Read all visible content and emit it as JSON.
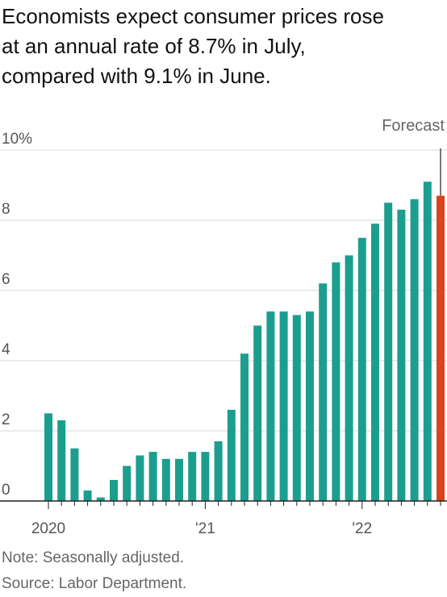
{
  "title_lines": [
    "Economists expect consumer prices rose",
    "at an annual rate of 8.7% in July,",
    "compared with 9.1% in June."
  ],
  "notes": {
    "note": "Note: Seasonally adjusted.",
    "source": "Source: Labor Department."
  },
  "chart_data": {
    "type": "bar",
    "title": "Economists expect consumer prices rose at an annual rate of 8.7% in July, compared with 9.1% in June.",
    "categories": [
      "2020-01",
      "2020-02",
      "2020-03",
      "2020-04",
      "2020-05",
      "2020-06",
      "2020-07",
      "2020-08",
      "2020-09",
      "2020-10",
      "2020-11",
      "2020-12",
      "2021-01",
      "2021-02",
      "2021-03",
      "2021-04",
      "2021-05",
      "2021-06",
      "2021-07",
      "2021-08",
      "2021-09",
      "2021-10",
      "2021-11",
      "2021-12",
      "2022-01",
      "2022-02",
      "2022-03",
      "2022-04",
      "2022-05",
      "2022-06",
      "2022-07"
    ],
    "values": [
      2.5,
      2.3,
      1.5,
      0.3,
      0.1,
      0.6,
      1.0,
      1.3,
      1.4,
      1.2,
      1.2,
      1.4,
      1.4,
      1.7,
      2.6,
      4.2,
      5.0,
      5.4,
      5.4,
      5.3,
      5.4,
      6.2,
      6.8,
      7.0,
      7.5,
      7.9,
      8.5,
      8.3,
      8.6,
      9.1,
      8.7
    ],
    "forecast_index": 30,
    "forecast_label": "Forecast",
    "ylim": [
      0,
      10
    ],
    "yticks": [
      "0",
      "2",
      "4",
      "6",
      "8",
      "10%"
    ],
    "ytick_values": [
      0,
      2,
      4,
      6,
      8,
      10
    ],
    "xtick_labels": [
      {
        "index": 0,
        "label": "2020"
      },
      {
        "index": 12,
        "label": "'21"
      },
      {
        "index": 24,
        "label": "'22"
      }
    ],
    "colors": {
      "bar": "#1c9e8f",
      "forecast": "#d9431e",
      "grid": "#d7d7d7",
      "axis": "#222222"
    },
    "grid": true,
    "legend": "none"
  }
}
